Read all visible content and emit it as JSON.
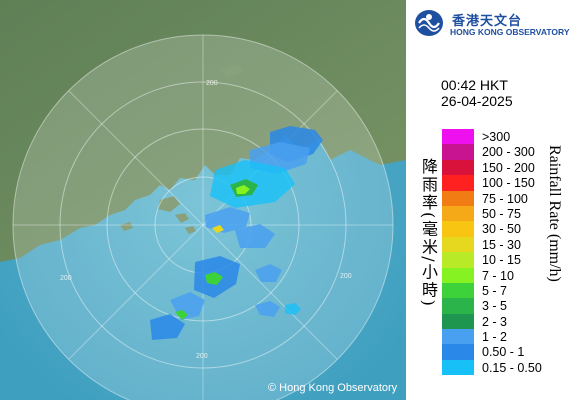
{
  "header": {
    "org_name_cn": "香港天文台",
    "org_name_en": "HONG KONG OBSERVATORY"
  },
  "timestamp": {
    "time": "00:42 HKT",
    "date": "26-04-2025"
  },
  "map": {
    "range_ring_labels": [
      "200",
      "200",
      "200",
      "200"
    ],
    "copyright": "© Hong Kong Observatory"
  },
  "legend": {
    "title_cn": "降雨率(毫米/小時)",
    "title_en": "Rainfall Rate (mm/h)",
    "items": [
      {
        "label": ">300",
        "color": "#ee10ee"
      },
      {
        "label": "200 - 300",
        "color": "#c81490"
      },
      {
        "label": "150 - 200",
        "color": "#d8123a"
      },
      {
        "label": "100 - 150",
        "color": "#ff2020"
      },
      {
        "label": "75 - 100",
        "color": "#f27c14"
      },
      {
        "label": "50 - 75",
        "color": "#f5a818"
      },
      {
        "label": "30 - 50",
        "color": "#f7c512"
      },
      {
        "label": "15 - 30",
        "color": "#e6d81e"
      },
      {
        "label": "10 - 15",
        "color": "#b8ea28"
      },
      {
        "label": "7 - 10",
        "color": "#86f222"
      },
      {
        "label": "5 - 7",
        "color": "#3ed23a"
      },
      {
        "label": "3 - 5",
        "color": "#2ab44a"
      },
      {
        "label": "2 - 3",
        "color": "#1e9650"
      },
      {
        "label": "1 - 2",
        "color": "#4aa0f0"
      },
      {
        "label": "0.50 - 1",
        "color": "#2a88e8"
      },
      {
        "label": "0.15 - 0.50",
        "color": "#18c0f8"
      }
    ]
  }
}
